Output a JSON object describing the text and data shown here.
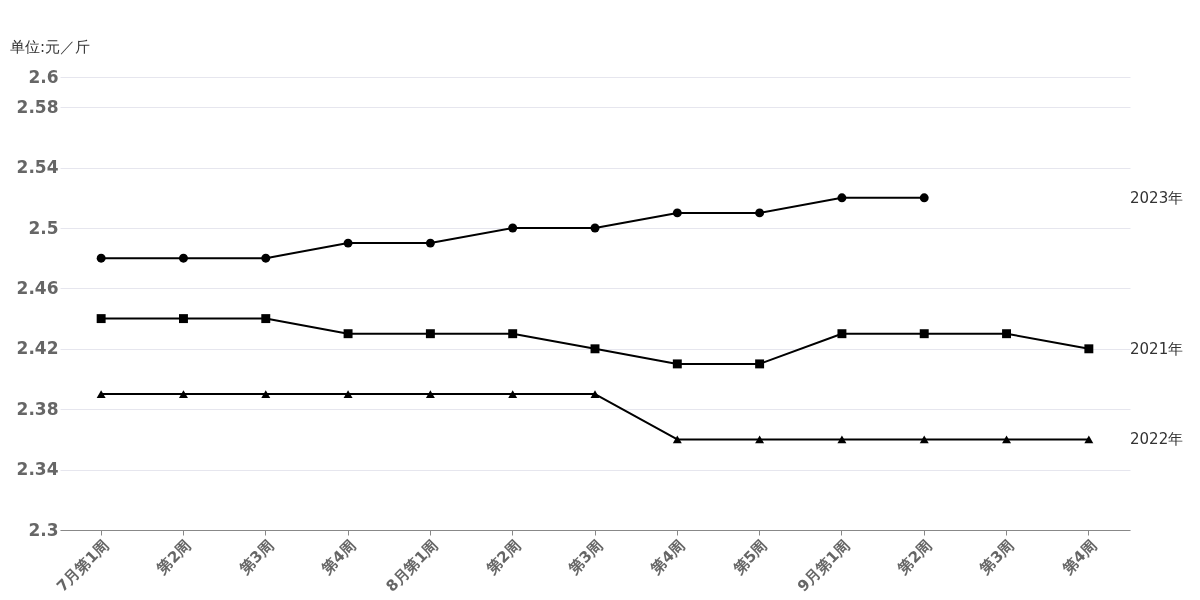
{
  "chart_data": {
    "type": "line",
    "ylabel": "单位:元／斤",
    "categories": [
      "7月第1周",
      "第2周",
      "第3周",
      "第4周",
      "8月第1周",
      "第2周",
      "第3周",
      "第4周",
      "第5周",
      "9月第1周",
      "第2周",
      "第3周",
      "第4周"
    ],
    "series": [
      {
        "name": "2023年",
        "color": "#000000",
        "marker": "circle",
        "values": [
          2.48,
          2.48,
          2.48,
          2.49,
          2.49,
          2.5,
          2.5,
          2.51,
          2.51,
          2.52,
          2.52,
          null,
          null
        ]
      },
      {
        "name": "2021年",
        "color": "#000000",
        "marker": "square",
        "values": [
          2.44,
          2.44,
          2.44,
          2.43,
          2.43,
          2.43,
          2.42,
          2.41,
          2.41,
          2.43,
          2.43,
          2.43,
          2.42
        ]
      },
      {
        "name": "2022年",
        "color": "#000000",
        "marker": "triangle",
        "values": [
          2.39,
          2.39,
          2.39,
          2.39,
          2.39,
          2.39,
          2.39,
          2.36,
          2.36,
          2.36,
          2.36,
          2.36,
          2.36
        ]
      }
    ],
    "ylim": [
      2.3,
      2.6
    ],
    "yticks": [
      2.3,
      2.34,
      2.38,
      2.42,
      2.46,
      2.5,
      2.54,
      2.58,
      2.6
    ],
    "grid": "y",
    "line_style": "solid"
  }
}
